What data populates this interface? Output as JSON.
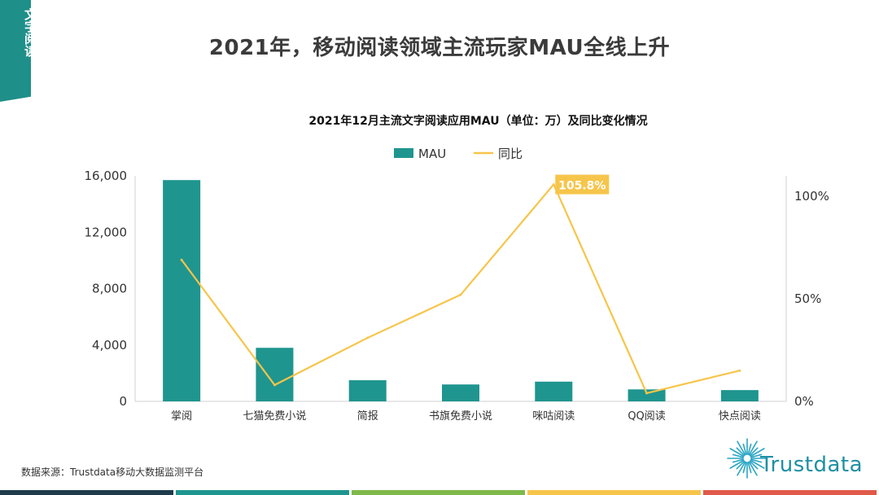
{
  "side_tab": {
    "label": "文字阅读"
  },
  "page_title": "2021年，移动阅读领域主流玩家MAU全线上升",
  "source_text": "数据来源：Trustdata移动大数据监测平台",
  "logo_text": "Trustdata",
  "colors": {
    "bar": "#1f958f",
    "line": "#f6c54a",
    "callout": "#f6c54a",
    "side_tab": "#1f8f89",
    "bottom_bar": [
      "#1d3b4a",
      "#1f958f",
      "#7fb94a",
      "#f6c54a",
      "#e05a4a"
    ]
  },
  "chart_data": {
    "type": "bar",
    "title": "2021年12月主流文字阅读应用MAU（单位：万）及同比变化情况",
    "categories": [
      "掌阅",
      "七猫免费小说",
      "简报",
      "书旗免费小说",
      "咪咕阅读",
      "QQ阅读",
      "快点阅读"
    ],
    "series": [
      {
        "name": "MAU",
        "axis": "left",
        "kind": "bar",
        "values": [
          15700,
          3800,
          1500,
          1200,
          1400,
          850,
          800
        ]
      },
      {
        "name": "同比",
        "axis": "right",
        "kind": "line",
        "unit": "%",
        "values": [
          69,
          8,
          31,
          52,
          105.8,
          4,
          15
        ]
      }
    ],
    "left_axis": {
      "min": 0,
      "max": 16000,
      "ticks": [
        0,
        4000,
        8000,
        12000,
        16000
      ],
      "tick_labels": [
        "0",
        "4,000",
        "8,000",
        "12,000",
        "16,000"
      ]
    },
    "right_axis": {
      "min": 0,
      "max": 110,
      "ticks": [
        0,
        50,
        100
      ],
      "tick_labels": [
        "0%",
        "50%",
        "100%"
      ]
    },
    "callout": {
      "category": "咪咕阅读",
      "label": "105.8%"
    },
    "legend": {
      "position": "top",
      "items": [
        "MAU",
        "同比"
      ]
    }
  }
}
